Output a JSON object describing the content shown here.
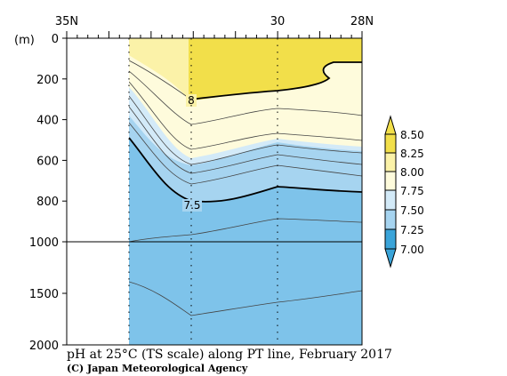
{
  "chart_data": {
    "type": "contour_section",
    "title": "pH at 25°C (TS scale) along PT line, February 2017",
    "credit": "(C) Japan Meteorological Agency",
    "ylabel": "(m)",
    "x_top_ticks": [
      {
        "lat": 35,
        "label": "35N"
      },
      {
        "lat": 30,
        "label": "30"
      },
      {
        "lat": 28,
        "label": "28N"
      }
    ],
    "x_range": [
      35,
      28
    ],
    "y_ticks_upper": [
      0,
      200,
      400,
      600,
      800,
      1000
    ],
    "y_ticks_lower": [
      1500,
      2000
    ],
    "y_break": 1000,
    "y_range": [
      0,
      2000
    ],
    "contour_labels": [
      "8",
      "7.5"
    ],
    "colorbar": {
      "levels": [
        "8.50",
        "8.25",
        "8.00",
        "7.75",
        "7.50",
        "7.25",
        "7.00"
      ],
      "colors": {
        "above_8.25": "#f2df4a",
        "8.00_8.25": "#fbf2a8",
        "7.75_8.00": "#fefbdc",
        "7.50_7.75": "#d3eaf8",
        "7.25_7.50": "#a6d4f0",
        "7.00_7.25": "#7ec3ea",
        "below_7.00": "#3aa4d9"
      }
    }
  }
}
